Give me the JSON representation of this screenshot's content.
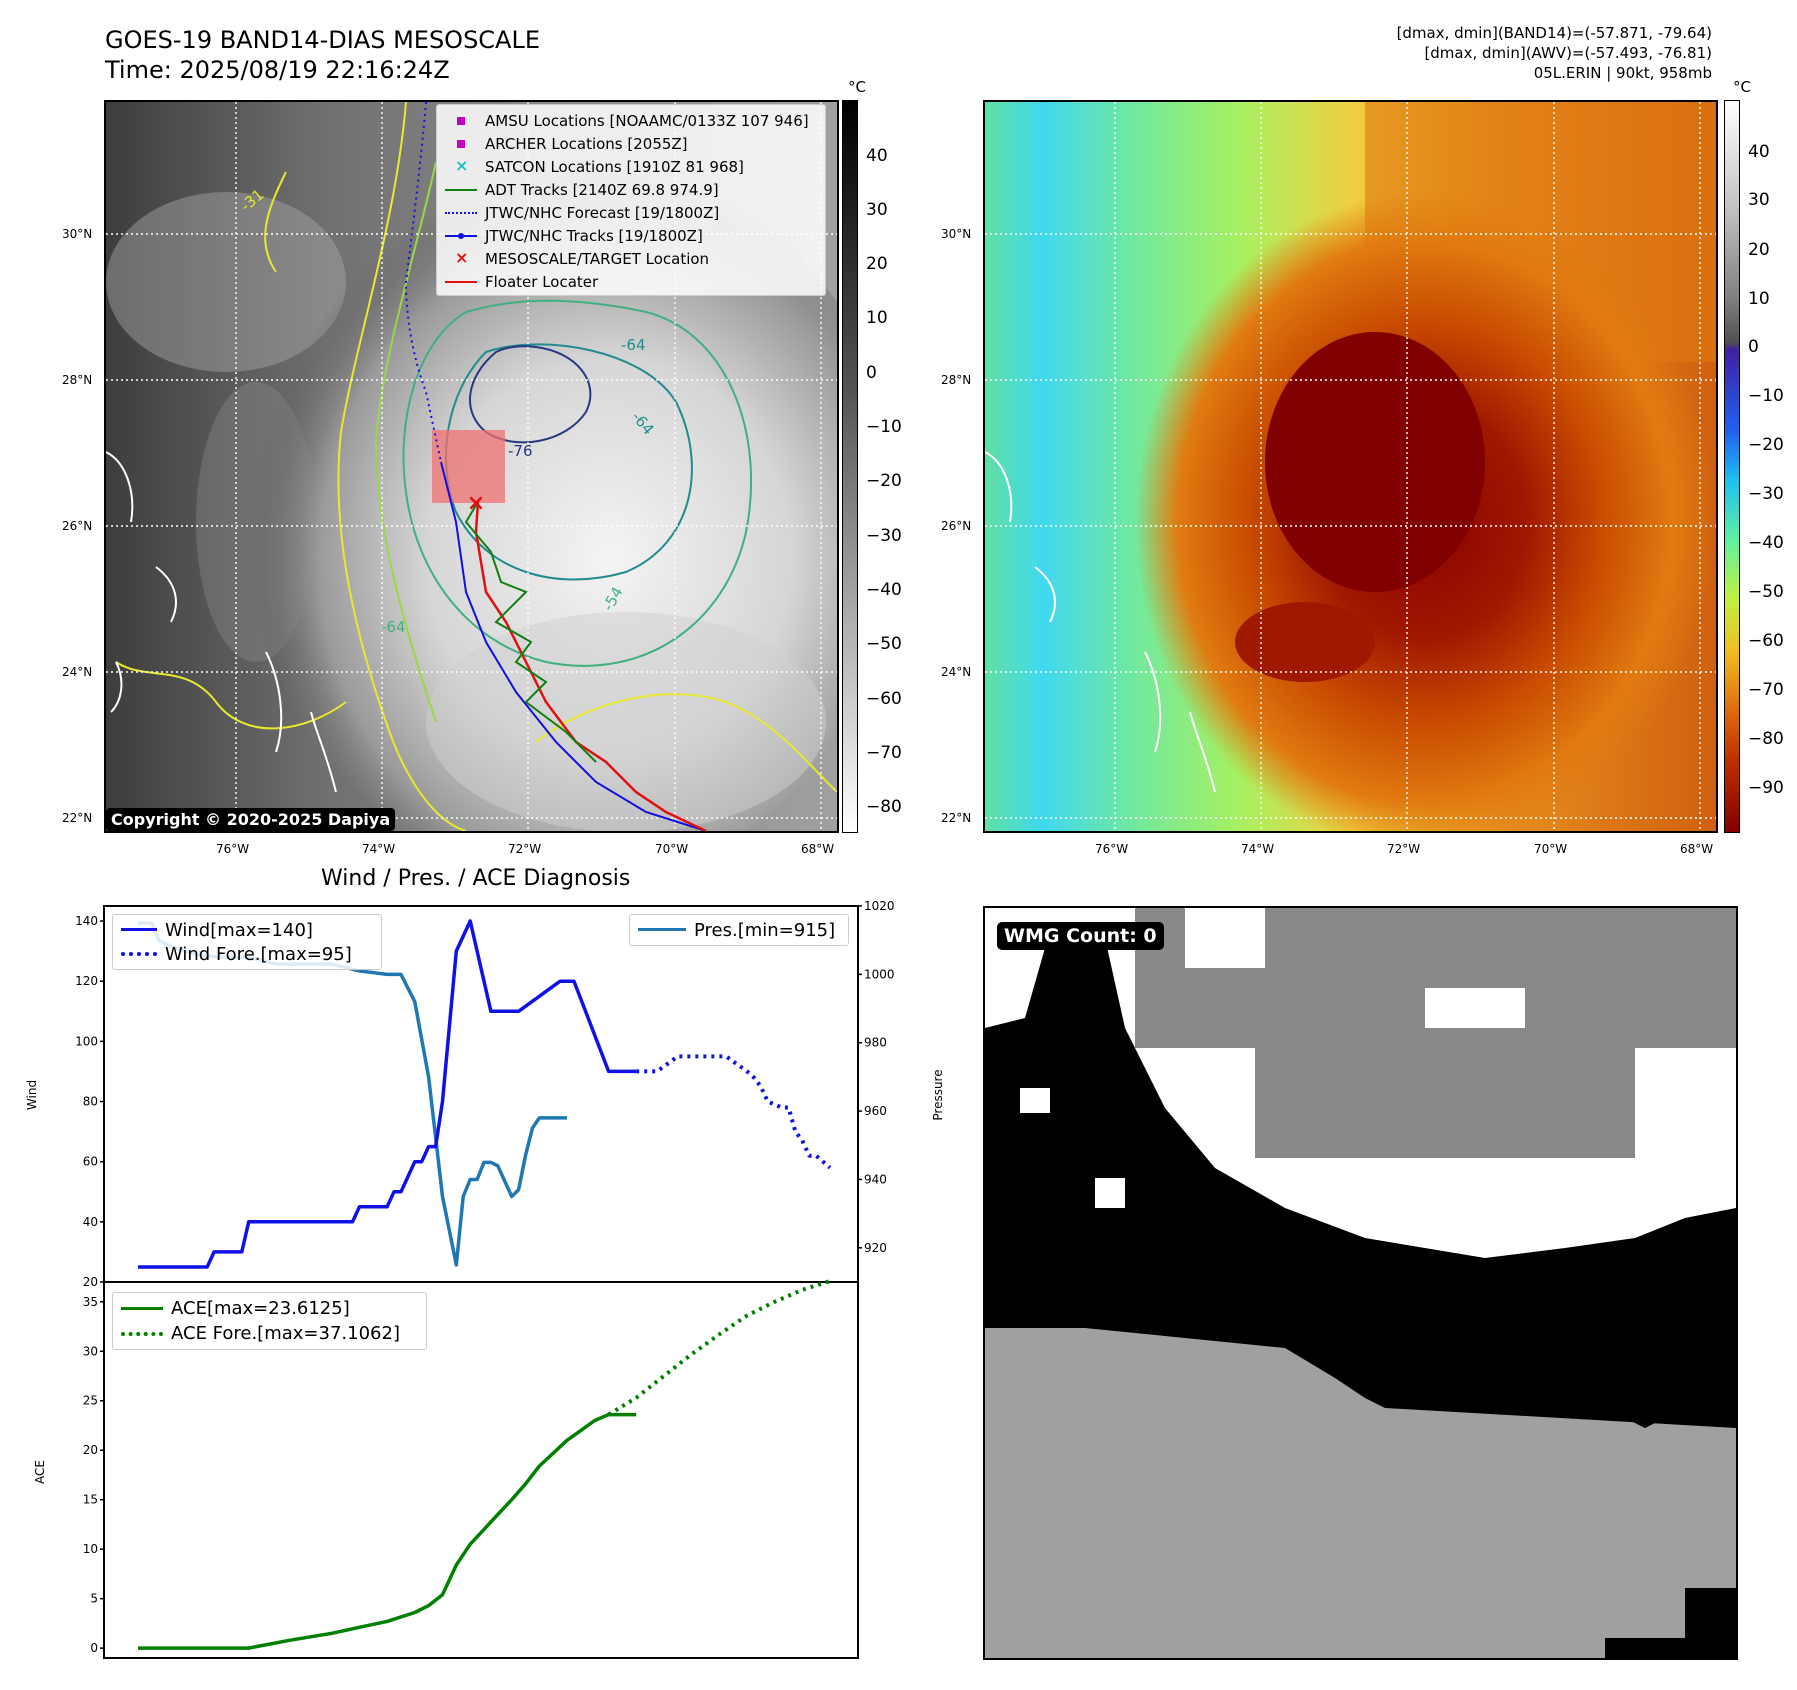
{
  "header": {
    "title_line1": "GOES-19 BAND14-DIAS MESOSCALE",
    "title_line2": "Time: 2025/08/19 22:16:24Z",
    "info_line1": "[dmax, dmin](BAND14)=(-57.871, -79.64)",
    "info_line2": "[dmax, dmin](AWV)=(-57.493, -76.81)",
    "info_line3": "05L.ERIN | 90kt, 958mb"
  },
  "map": {
    "lat_labels": [
      "30°N",
      "28°N",
      "26°N",
      "24°N",
      "22°N"
    ],
    "lon_labels": [
      "76°W",
      "74°W",
      "72°W",
      "70°W",
      "68°W"
    ],
    "contour_labels": [
      "-31",
      "-54",
      "-64",
      "-64",
      "-76",
      "-54",
      "-64",
      "-31"
    ],
    "copyright": "Copyright © 2020-2025 Dapiya",
    "legend": [
      {
        "label": "AMSU Locations [NOAAMC/0133Z 107 946]",
        "marker": "square",
        "color": "#c000c0"
      },
      {
        "label": "ARCHER Locations [2055Z]",
        "marker": "square",
        "color": "#c000c0"
      },
      {
        "label": "SATCON Locations [1910Z 81 968]",
        "marker": "x",
        "color": "#20c0c0"
      },
      {
        "label": "ADT Tracks [2140Z 69.8 974.9]",
        "marker": "line",
        "color": "#108010"
      },
      {
        "label": "JTWC/NHC Forecast [19/1800Z]",
        "marker": "dotted",
        "color": "#1010e0"
      },
      {
        "label": "JTWC/NHC Tracks [19/1800Z]",
        "marker": "line-dot",
        "color": "#1010e0"
      },
      {
        "label": "MESOSCALE/TARGET Location",
        "marker": "x",
        "color": "#e01010"
      },
      {
        "label": "Floater Locater",
        "marker": "line",
        "color": "#e01010"
      }
    ],
    "colorbar_unit": "°C",
    "bw_colorbar_ticks": [
      "40",
      "30",
      "20",
      "10",
      "0",
      "−10",
      "−20",
      "−30",
      "−40",
      "−50",
      "−60",
      "−70",
      "−80"
    ],
    "color_colorbar_ticks": [
      "40",
      "30",
      "20",
      "10",
      "0",
      "−10",
      "−20",
      "−30",
      "−40",
      "−50",
      "−60",
      "−70",
      "−80",
      "−90"
    ]
  },
  "diag": {
    "title": "Wind / Pres. / ACE Diagnosis",
    "wind_ylabel": "Wind",
    "pres_ylabel": "Pressure",
    "ace_ylabel": "ACE",
    "wind_ticks": [
      "140",
      "120",
      "100",
      "80",
      "60",
      "40",
      "20"
    ],
    "pres_ticks": [
      "1020",
      "1000",
      "980",
      "960",
      "940",
      "920"
    ],
    "ace_ticks": [
      "35",
      "30",
      "25",
      "20",
      "15",
      "10",
      "5",
      "0"
    ],
    "legend_wind": "Wind[max=140]",
    "legend_wind_fore": "Wind Fore.[max=95]",
    "legend_pres": "Pres.[min=915]",
    "legend_ace": "ACE[max=23.6125]",
    "legend_ace_fore": "ACE Fore.[max=37.1062]"
  },
  "wmg": {
    "label": "WMG Count: 0"
  },
  "colors": {
    "wind": "#1010e8",
    "pressure": "#1f77b4",
    "ace": "#008000"
  },
  "chart_data": [
    {
      "type": "line",
      "title": "Wind / Pres. / ACE Diagnosis",
      "ylabel": "Wind",
      "ylim": [
        20,
        145
      ],
      "xlim": [
        0,
        100
      ],
      "series": [
        {
          "name": "Wind[max=140]",
          "style": "solid",
          "x": [
            0,
            10,
            11,
            15,
            16,
            21,
            22,
            31,
            32,
            36,
            37,
            38,
            39,
            40,
            41,
            42,
            43,
            44,
            46,
            48,
            49,
            51,
            54,
            55,
            61,
            62,
            63,
            68,
            72
          ],
          "y": [
            25,
            25,
            30,
            30,
            40,
            40,
            40,
            40,
            45,
            45,
            50,
            50,
            55,
            60,
            60,
            65,
            65,
            80,
            130,
            140,
            130,
            110,
            110,
            110,
            120,
            120,
            120,
            90,
            90
          ]
        },
        {
          "name": "Wind Fore.[max=95]",
          "style": "dotted",
          "x": [
            72,
            75,
            78,
            82,
            85,
            88,
            89,
            90,
            91,
            93,
            94,
            95,
            96,
            97,
            98,
            100
          ],
          "y": [
            90,
            90,
            95,
            95,
            95,
            90,
            88,
            85,
            80,
            78,
            78,
            70,
            67,
            62,
            62,
            58
          ]
        }
      ]
    },
    {
      "type": "line",
      "ylabel": "Pressure",
      "ylim": [
        910,
        1020
      ],
      "series": [
        {
          "name": "Pres.[min=915]",
          "style": "solid",
          "x": [
            0,
            2,
            3,
            5,
            8,
            12,
            16,
            20,
            24,
            28,
            32,
            36,
            38,
            40,
            42,
            44,
            46,
            47,
            48,
            49,
            50,
            51,
            52,
            54,
            55,
            56,
            57,
            58,
            60,
            61,
            62
          ],
          "y": [
            1015,
            1015,
            1010,
            1008,
            1006,
            1005,
            1005,
            1003,
            1003,
            1003,
            1001,
            1000,
            1000,
            992,
            970,
            935,
            915,
            935,
            940,
            940,
            945,
            945,
            944,
            935,
            937,
            947,
            955,
            958,
            958,
            958,
            958
          ]
        }
      ]
    },
    {
      "type": "line",
      "ylabel": "ACE",
      "ylim": [
        -1,
        37
      ],
      "series": [
        {
          "name": "ACE[max=23.6125]",
          "style": "solid",
          "x": [
            0,
            16,
            22,
            28,
            32,
            36,
            40,
            42,
            44,
            46,
            48,
            50,
            52,
            54,
            56,
            58,
            60,
            62,
            64,
            66,
            68,
            70,
            72
          ],
          "y": [
            0,
            0,
            0.8,
            1.5,
            2.1,
            2.7,
            3.6,
            4.3,
            5.4,
            8.4,
            10.5,
            12.0,
            13.5,
            15.0,
            16.6,
            18.4,
            19.7,
            21.0,
            22.0,
            23.0,
            23.6,
            23.6,
            23.6
          ]
        },
        {
          "name": "ACE Fore.[max=37.1062]",
          "style": "dotted",
          "x": [
            68,
            72,
            76,
            80,
            84,
            88,
            92,
            96,
            100
          ],
          "y": [
            23.6,
            25.3,
            27.5,
            29.7,
            31.7,
            33.6,
            35.0,
            36.2,
            37.1
          ]
        }
      ]
    }
  ]
}
